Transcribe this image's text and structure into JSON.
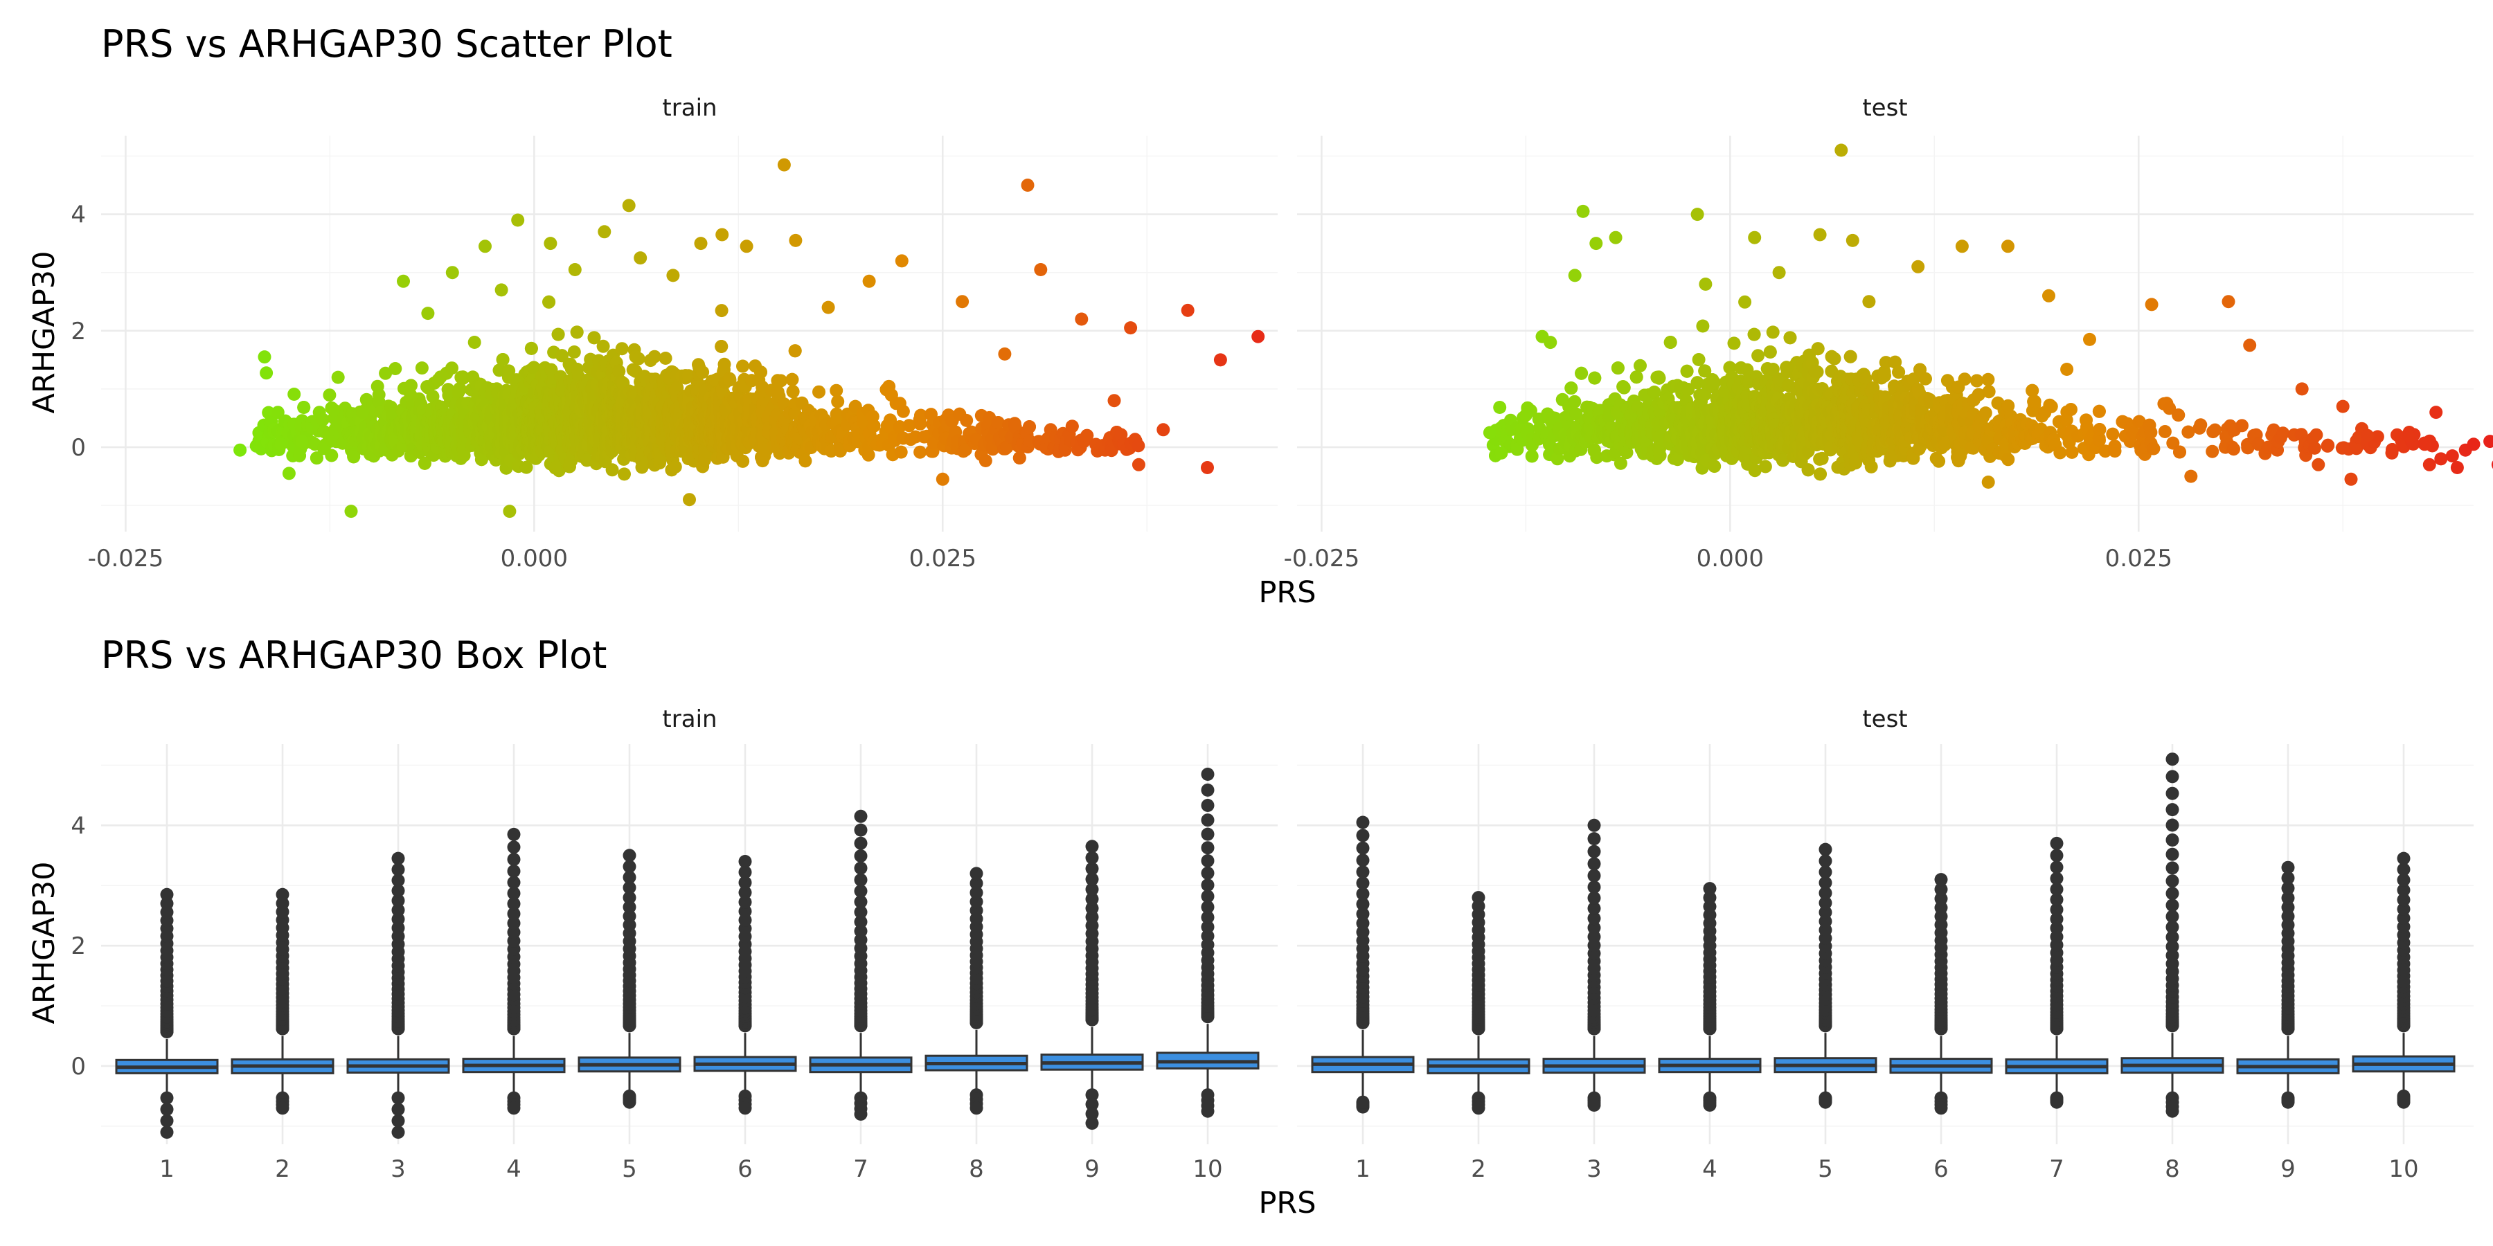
{
  "chart_data": [
    {
      "type": "scatter",
      "title": "PRS vs ARHGAP30 Scatter Plot",
      "xlabel": "PRS",
      "ylabel": "ARHGAP30",
      "facets": [
        "train",
        "test"
      ],
      "xlim": [
        -0.0265,
        0.0455
      ],
      "ylim": [
        -1.45,
        5.35
      ],
      "x_ticks": [
        -0.025,
        0.0,
        0.025
      ],
      "x_tick_labels": [
        "-0.025",
        "0.000",
        "0.025"
      ],
      "y_ticks": [
        0,
        2,
        4
      ],
      "y_tick_labels": [
        "0",
        "2",
        "4"
      ],
      "color_scale": {
        "low": "#7CE80A",
        "mid": "#E08A00",
        "high": "#E8201A"
      },
      "grid": true,
      "legend": "none",
      "series": [
        {
          "facet": "train",
          "points": [
            [
              -0.018,
              -0.05
            ],
            [
              -0.0165,
              1.55
            ],
            [
              -0.0155,
              0.05
            ],
            [
              -0.015,
              -0.45
            ],
            [
              -0.0142,
              0.1
            ],
            [
              -0.012,
              1.2
            ],
            [
              -0.0112,
              -1.1
            ],
            [
              -0.0105,
              0.6
            ],
            [
              -0.0095,
              0.9
            ],
            [
              -0.0085,
              1.35
            ],
            [
              -0.008,
              2.85
            ],
            [
              -0.0065,
              2.3
            ],
            [
              -0.005,
              3.0
            ],
            [
              -0.003,
              3.45
            ],
            [
              -0.002,
              2.7
            ],
            [
              -0.0015,
              -1.1
            ],
            [
              -0.001,
              3.9
            ],
            [
              0.001,
              3.5
            ],
            [
              0.0025,
              3.05
            ],
            [
              0.0043,
              3.7
            ],
            [
              0.0058,
              4.15
            ],
            [
              0.0065,
              3.25
            ],
            [
              0.0085,
              2.95
            ],
            [
              0.0095,
              -0.9
            ],
            [
              0.0102,
              3.5
            ],
            [
              0.0115,
              3.65
            ],
            [
              0.013,
              3.45
            ],
            [
              0.0153,
              4.85
            ],
            [
              0.016,
              3.55
            ],
            [
              0.018,
              2.4
            ],
            [
              0.0205,
              2.85
            ],
            [
              0.0225,
              3.2
            ],
            [
              0.025,
              -0.55
            ],
            [
              0.0262,
              2.5
            ],
            [
              0.0288,
              1.6
            ],
            [
              0.0302,
              4.5
            ],
            [
              0.031,
              3.05
            ],
            [
              0.0335,
              2.2
            ],
            [
              0.0355,
              0.8
            ],
            [
              0.0365,
              2.05
            ],
            [
              0.037,
              -0.3
            ],
            [
              0.0385,
              0.3
            ],
            [
              0.04,
              2.35
            ],
            [
              0.0412,
              -0.35
            ],
            [
              0.042,
              1.5
            ],
            [
              0.0443,
              1.9
            ]
          ]
        },
        {
          "facet": "test",
          "points": [
            [
              -0.0147,
              0.25
            ],
            [
              -0.014,
              -0.1
            ],
            [
              -0.0125,
              0.55
            ],
            [
              -0.0115,
              1.9
            ],
            [
              -0.011,
              1.8
            ],
            [
              -0.0095,
              2.95
            ],
            [
              -0.009,
              4.05
            ],
            [
              -0.0082,
              3.5
            ],
            [
              -0.007,
              3.6
            ],
            [
              -0.0055,
              1.4
            ],
            [
              -0.002,
              4.0
            ],
            [
              -0.0015,
              2.8
            ],
            [
              0.0015,
              3.6
            ],
            [
              0.003,
              3.0
            ],
            [
              0.0055,
              3.65
            ],
            [
              0.0068,
              5.1
            ],
            [
              0.0075,
              3.55
            ],
            [
              0.0085,
              2.5
            ],
            [
              0.0115,
              3.1
            ],
            [
              0.0142,
              3.45
            ],
            [
              0.017,
              3.45
            ],
            [
              0.0158,
              -0.6
            ],
            [
              0.0195,
              2.6
            ],
            [
              0.022,
              1.85
            ],
            [
              0.0258,
              2.45
            ],
            [
              0.0282,
              -0.5
            ],
            [
              0.0305,
              2.5
            ],
            [
              0.0318,
              1.75
            ],
            [
              0.035,
              1.0
            ],
            [
              0.036,
              -0.3
            ],
            [
              0.0375,
              0.7
            ],
            [
              0.038,
              -0.55
            ],
            [
              0.039,
              0.2
            ],
            [
              0.0405,
              -0.1
            ],
            [
              0.0415,
              0.2
            ],
            [
              0.0425,
              0.05
            ],
            [
              0.0428,
              -0.3
            ],
            [
              0.0432,
              0.6
            ],
            [
              0.0435,
              -0.2
            ],
            [
              0.0442,
              -0.15
            ],
            [
              0.0445,
              -0.35
            ],
            [
              0.045,
              -0.05
            ],
            [
              0.0455,
              0.05
            ],
            [
              0.0465,
              0.1
            ],
            [
              0.047,
              -0.3
            ]
          ]
        }
      ]
    },
    {
      "type": "box",
      "title": "PRS vs ARHGAP30 Box Plot",
      "xlabel": "PRS",
      "ylabel": "ARHGAP30",
      "facets": [
        "train",
        "test"
      ],
      "categories": [
        "1",
        "2",
        "3",
        "4",
        "5",
        "6",
        "7",
        "8",
        "9",
        "10"
      ],
      "ylim": [
        -1.3,
        5.35
      ],
      "y_ticks": [
        0,
        2,
        4
      ],
      "y_tick_labels": [
        "0",
        "2",
        "4"
      ],
      "box_fill": "#3C8FE0",
      "grid": true,
      "legend": "none",
      "series": [
        {
          "facet": "train",
          "boxes": [
            {
              "q1": -0.12,
              "median": -0.02,
              "q3": 0.1,
              "low": -0.45,
              "high": 0.45,
              "out_max": 2.85,
              "out_min": -1.1
            },
            {
              "q1": -0.12,
              "median": 0.0,
              "q3": 0.11,
              "low": -0.45,
              "high": 0.5,
              "out_max": 2.85,
              "out_min": -0.7
            },
            {
              "q1": -0.11,
              "median": 0.0,
              "q3": 0.11,
              "low": -0.45,
              "high": 0.5,
              "out_max": 3.45,
              "out_min": -1.1
            },
            {
              "q1": -0.1,
              "median": 0.01,
              "q3": 0.12,
              "low": -0.45,
              "high": 0.5,
              "out_max": 3.85,
              "out_min": -0.7
            },
            {
              "q1": -0.09,
              "median": 0.02,
              "q3": 0.14,
              "low": -0.42,
              "high": 0.55,
              "out_max": 3.5,
              "out_min": -0.6
            },
            {
              "q1": -0.08,
              "median": 0.03,
              "q3": 0.15,
              "low": -0.42,
              "high": 0.55,
              "out_max": 3.4,
              "out_min": -0.7
            },
            {
              "q1": -0.1,
              "median": 0.02,
              "q3": 0.14,
              "low": -0.45,
              "high": 0.55,
              "out_max": 4.15,
              "out_min": -0.8
            },
            {
              "q1": -0.07,
              "median": 0.04,
              "q3": 0.17,
              "low": -0.4,
              "high": 0.6,
              "out_max": 3.2,
              "out_min": -0.7
            },
            {
              "q1": -0.06,
              "median": 0.05,
              "q3": 0.19,
              "low": -0.4,
              "high": 0.65,
              "out_max": 3.65,
              "out_min": -0.95
            },
            {
              "q1": -0.04,
              "median": 0.07,
              "q3": 0.22,
              "low": -0.4,
              "high": 0.7,
              "out_max": 4.85,
              "out_min": -0.75
            }
          ]
        },
        {
          "facet": "test",
          "boxes": [
            {
              "q1": -0.1,
              "median": 0.03,
              "q3": 0.15,
              "low": -0.6,
              "high": 0.6,
              "out_max": 4.05,
              "out_min": -0.6
            },
            {
              "q1": -0.12,
              "median": 0.0,
              "q3": 0.11,
              "low": -0.45,
              "high": 0.5,
              "out_max": 2.8,
              "out_min": -0.7
            },
            {
              "q1": -0.11,
              "median": 0.0,
              "q3": 0.12,
              "low": -0.45,
              "high": 0.5,
              "out_max": 4.0,
              "out_min": -0.65
            },
            {
              "q1": -0.1,
              "median": 0.01,
              "q3": 0.12,
              "low": -0.45,
              "high": 0.5,
              "out_max": 2.95,
              "out_min": -0.65
            },
            {
              "q1": -0.1,
              "median": 0.01,
              "q3": 0.13,
              "low": -0.45,
              "high": 0.55,
              "out_max": 3.6,
              "out_min": -0.6
            },
            {
              "q1": -0.11,
              "median": 0.0,
              "q3": 0.12,
              "low": -0.45,
              "high": 0.5,
              "out_max": 3.1,
              "out_min": -0.7
            },
            {
              "q1": -0.12,
              "median": -0.01,
              "q3": 0.11,
              "low": -0.45,
              "high": 0.5,
              "out_max": 3.7,
              "out_min": -0.6
            },
            {
              "q1": -0.11,
              "median": 0.01,
              "q3": 0.13,
              "low": -0.45,
              "high": 0.55,
              "out_max": 5.1,
              "out_min": -0.75
            },
            {
              "q1": -0.12,
              "median": -0.01,
              "q3": 0.11,
              "low": -0.45,
              "high": 0.5,
              "out_max": 3.3,
              "out_min": -0.6
            },
            {
              "q1": -0.09,
              "median": 0.03,
              "q3": 0.16,
              "low": -0.42,
              "high": 0.55,
              "out_max": 3.45,
              "out_min": -0.6
            }
          ]
        }
      ]
    }
  ]
}
